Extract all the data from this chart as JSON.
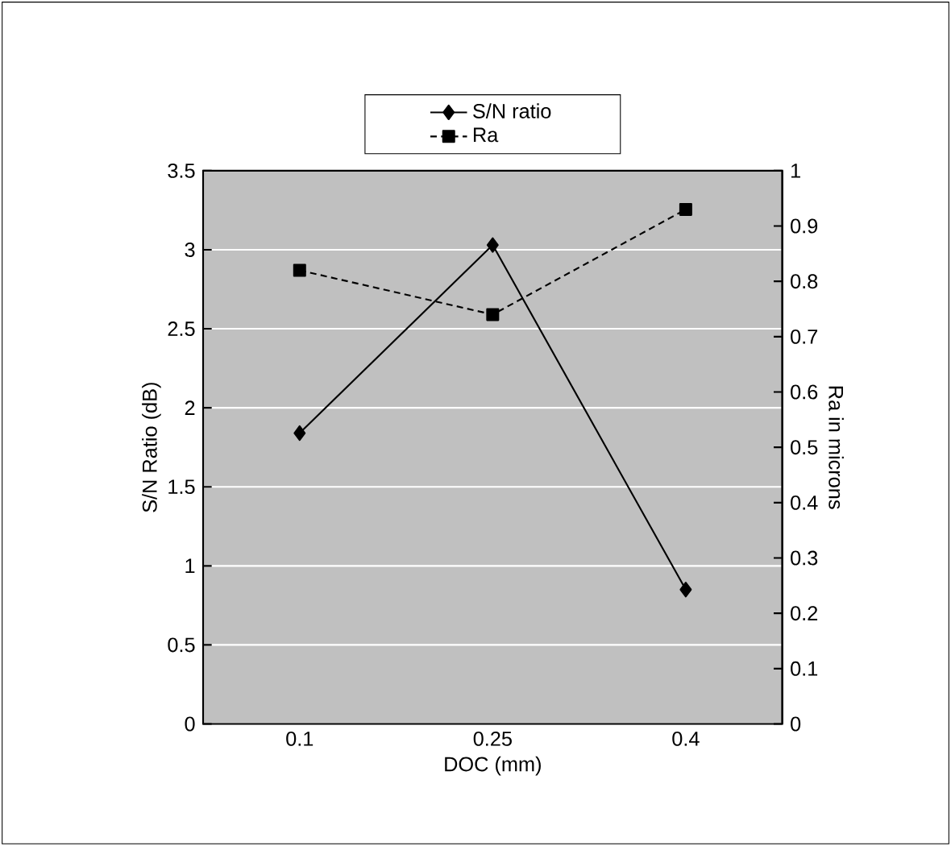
{
  "chart_data": {
    "type": "line",
    "xlabel": "DOC (mm)",
    "ylabel": "S/N Ratio  (dB)",
    "y2label": "Ra in microns",
    "categories": [
      "0.1",
      "0.25",
      "0.4"
    ],
    "series": [
      {
        "name": "S/N ratio",
        "color": "#000000",
        "values": [
          1.84,
          3.03,
          0.85
        ],
        "marker": "diamond",
        "line_style": "solid"
      },
      {
        "name": "Ra",
        "color": "#000000",
        "values": [
          0.82,
          0.74,
          0.93
        ],
        "marker": "square",
        "line_style": "dashed",
        "axis": "y2"
      }
    ],
    "ylim": [
      0,
      3.5
    ],
    "yticks": [
      0,
      0.5,
      1,
      1.5,
      2,
      2.5,
      3,
      3.5
    ],
    "y2lim": [
      0,
      1
    ],
    "y2ticks": [
      0,
      0.1,
      0.2,
      0.3,
      0.4,
      0.5,
      0.6,
      0.7,
      0.8,
      0.9,
      1
    ],
    "grid": "y",
    "legend": "top"
  }
}
